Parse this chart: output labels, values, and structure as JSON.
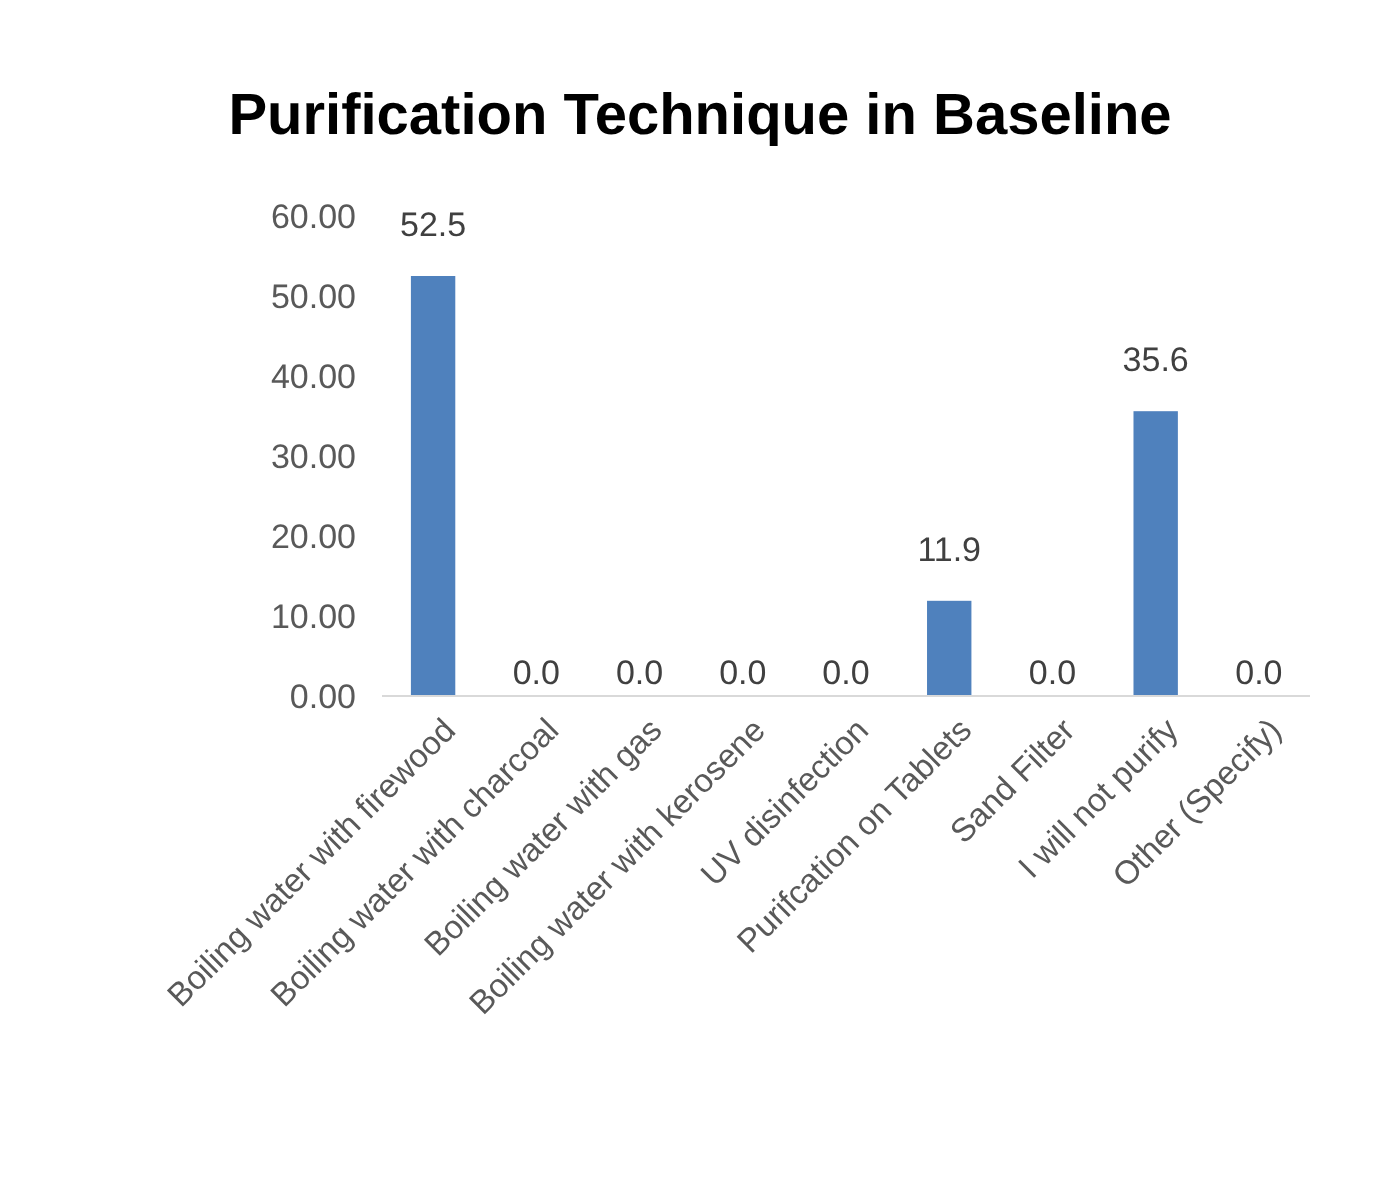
{
  "chart_data": {
    "type": "bar",
    "title": "Purification Technique in Baseline",
    "categories": [
      "Boiling water with firewood",
      "Boiling water with charcoal",
      "Boiling water with gas",
      "Boiling water with kerosene",
      "UV disinfection",
      "Purifcation on Tablets",
      "Sand Filter",
      "I will not purify",
      "Other (Specify)"
    ],
    "values": [
      52.5,
      0,
      0,
      0,
      0,
      11.9,
      0,
      35.6,
      0
    ],
    "value_labels": [
      "52.5",
      "0.0",
      "0.0",
      "0.0",
      "0.0",
      "11.9",
      "0.0",
      "35.6",
      "0.0"
    ],
    "color": "#4f81bd",
    "ylim": [
      0,
      60
    ],
    "yticks": [
      {
        "value": 0,
        "label": "0.00"
      },
      {
        "value": 10,
        "label": "10.00"
      },
      {
        "value": 20,
        "label": "20.00"
      },
      {
        "value": 30,
        "label": "30.00"
      },
      {
        "value": 40,
        "label": "40.00"
      },
      {
        "value": 50,
        "label": "50.00"
      },
      {
        "value": 60,
        "label": "60.00"
      }
    ],
    "grid": false
  }
}
